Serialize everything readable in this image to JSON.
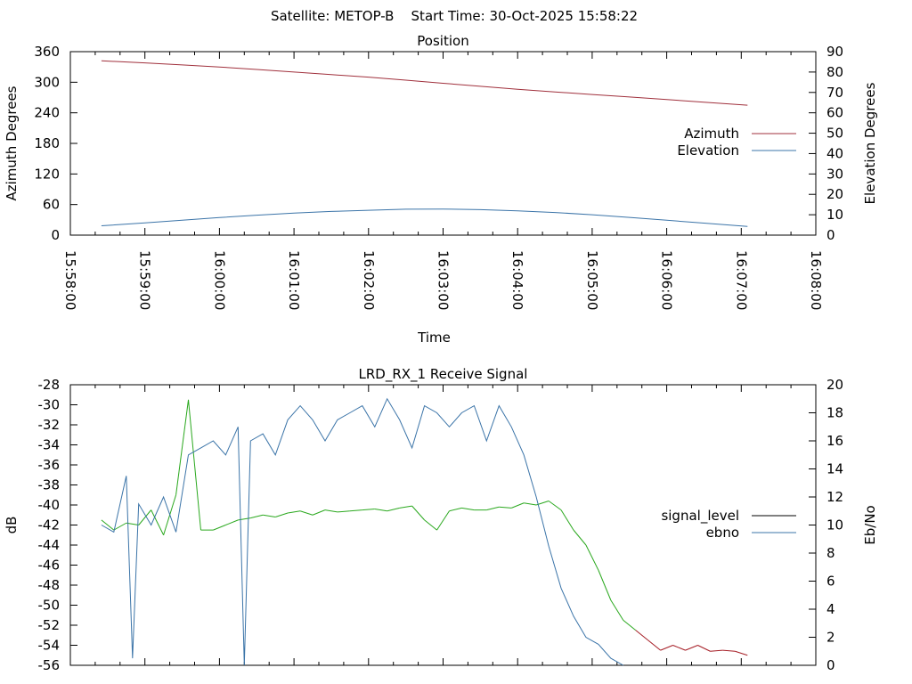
{
  "header": {
    "title": "Satellite: METOP-B    Start Time: 30-Oct-2025 15:58:22"
  },
  "colors": {
    "azimuth": "#a0303c",
    "elevation": "#3b74a8",
    "signal_level_legend": "#000000",
    "signal_level_strong": "#2aa81e",
    "signal_level_weak": "#a51c24",
    "ebno": "#3b74a8",
    "axis": "#000000"
  },
  "chart_data": [
    {
      "type": "line",
      "title": "Position",
      "xlabel": "Time",
      "ylabel": "Azimuth Degrees",
      "y2label": "Elevation Degrees",
      "xlim": [
        "15:58:00",
        "16:08:00"
      ],
      "xticks": [
        "15:58:00",
        "15:59:00",
        "16:00:00",
        "16:01:00",
        "16:02:00",
        "16:03:00",
        "16:04:00",
        "16:05:00",
        "16:06:00",
        "16:07:00",
        "16:08:00"
      ],
      "ylim": [
        0,
        360
      ],
      "yticks": [
        0,
        60,
        120,
        180,
        240,
        300,
        360
      ],
      "y2lim": [
        0,
        90
      ],
      "y2ticks": [
        0,
        10,
        20,
        30,
        40,
        50,
        60,
        70,
        80,
        90
      ],
      "legend_position": "right",
      "series": [
        {
          "name": "Azimuth",
          "axis": "left",
          "color_key": "azimuth",
          "x": [
            "15:58:25",
            "15:59:00",
            "15:59:30",
            "16:00:00",
            "16:00:30",
            "16:01:00",
            "16:01:30",
            "16:02:00",
            "16:02:30",
            "16:03:00",
            "16:03:30",
            "16:04:00",
            "16:04:30",
            "16:05:00",
            "16:05:30",
            "16:06:00",
            "16:06:30",
            "16:07:05"
          ],
          "values": [
            342,
            338,
            334,
            330,
            325,
            320,
            315,
            310,
            304,
            298,
            292,
            286,
            281,
            276,
            271,
            266,
            261,
            255
          ]
        },
        {
          "name": "Elevation",
          "axis": "right",
          "color_key": "elevation",
          "x": [
            "15:58:25",
            "15:59:00",
            "15:59:30",
            "16:00:00",
            "16:00:30",
            "16:01:00",
            "16:01:30",
            "16:02:00",
            "16:02:30",
            "16:03:00",
            "16:03:30",
            "16:04:00",
            "16:04:30",
            "16:05:00",
            "16:05:30",
            "16:06:00",
            "16:06:30",
            "16:07:05"
          ],
          "values": [
            4.6,
            6.0,
            7.3,
            8.6,
            9.8,
            10.8,
            11.6,
            12.2,
            12.7,
            12.8,
            12.5,
            11.9,
            11.1,
            10.0,
            8.7,
            7.3,
            5.9,
            4.3
          ]
        }
      ]
    },
    {
      "type": "line",
      "title": "LRD_RX_1 Receive Signal",
      "ylabel": "dB",
      "y2label": "Eb/No",
      "xlim": [
        "15:58:00",
        "16:08:00"
      ],
      "ylim": [
        -56,
        -28
      ],
      "yticks": [
        -28,
        -30,
        -32,
        -34,
        -36,
        -38,
        -40,
        -42,
        -44,
        -46,
        -48,
        -50,
        -52,
        -54,
        -56
      ],
      "y2lim": [
        0,
        20
      ],
      "y2ticks": [
        0,
        2,
        4,
        6,
        8,
        10,
        12,
        14,
        16,
        18,
        20
      ],
      "legend_position": "right",
      "series": [
        {
          "name": "signal_level",
          "axis": "left",
          "color_key": "signal_level_legend",
          "x": [
            "15:58:25",
            "15:58:35",
            "15:58:45",
            "15:58:55",
            "15:59:05",
            "15:59:15",
            "15:59:25",
            "15:59:35",
            "15:59:45",
            "15:59:55",
            "16:00:05",
            "16:00:15",
            "16:00:25",
            "16:00:35",
            "16:00:45",
            "16:00:55",
            "16:01:05",
            "16:01:15",
            "16:01:25",
            "16:01:35",
            "16:01:45",
            "16:01:55",
            "16:02:05",
            "16:02:15",
            "16:02:25",
            "16:02:35",
            "16:02:45",
            "16:02:55",
            "16:03:05",
            "16:03:15",
            "16:03:25",
            "16:03:35",
            "16:03:45",
            "16:03:55",
            "16:04:05",
            "16:04:15",
            "16:04:25",
            "16:04:35",
            "16:04:45",
            "16:04:55",
            "16:05:05",
            "16:05:15",
            "16:05:25",
            "16:05:35",
            "16:05:45",
            "16:05:55",
            "16:06:05",
            "16:06:15",
            "16:06:25",
            "16:06:35",
            "16:06:45",
            "16:06:55",
            "16:07:05"
          ],
          "values": [
            -41.5,
            -42.5,
            -41.8,
            -42.0,
            -40.5,
            -43.0,
            -39.0,
            -29.5,
            -42.5,
            -42.5,
            -42.0,
            -41.5,
            -41.3,
            -41.0,
            -41.2,
            -40.8,
            -40.6,
            -41.0,
            -40.5,
            -40.7,
            -40.6,
            -40.5,
            -40.4,
            -40.6,
            -40.3,
            -40.1,
            -41.5,
            -42.5,
            -40.6,
            -40.3,
            -40.5,
            -40.5,
            -40.2,
            -40.3,
            -39.8,
            -40.0,
            -39.6,
            -40.5,
            -42.5,
            -44.0,
            -46.5,
            -49.5,
            -51.5,
            -52.5,
            -53.5,
            -54.5,
            -54.0,
            -54.5,
            -54.0,
            -54.6,
            -54.5,
            -54.6,
            -55.0
          ]
        },
        {
          "name": "ebno",
          "axis": "right",
          "color_key": "ebno",
          "x": [
            "15:58:25",
            "15:58:35",
            "15:58:45",
            "15:58:50",
            "15:58:55",
            "15:59:05",
            "15:59:15",
            "15:59:25",
            "15:59:35",
            "15:59:45",
            "15:59:55",
            "16:00:05",
            "16:00:15",
            "16:00:20",
            "16:00:25",
            "16:00:35",
            "16:00:45",
            "16:00:55",
            "16:01:05",
            "16:01:15",
            "16:01:25",
            "16:01:35",
            "16:01:45",
            "16:01:55",
            "16:02:05",
            "16:02:15",
            "16:02:25",
            "16:02:35",
            "16:02:45",
            "16:02:55",
            "16:03:05",
            "16:03:15",
            "16:03:25",
            "16:03:35",
            "16:03:45",
            "16:03:55",
            "16:04:05",
            "16:04:15",
            "16:04:25",
            "16:04:35",
            "16:04:45",
            "16:04:55",
            "16:05:05",
            "16:05:15",
            "16:05:25"
          ],
          "values": [
            10.0,
            9.5,
            13.5,
            0.5,
            11.5,
            10.0,
            12.0,
            9.5,
            15.0,
            15.5,
            16.0,
            15.0,
            17.0,
            0.0,
            16.0,
            16.5,
            15.0,
            17.5,
            18.5,
            17.5,
            16.0,
            17.5,
            18.0,
            18.5,
            17.0,
            19.0,
            17.5,
            15.5,
            18.5,
            18.0,
            17.0,
            18.0,
            18.5,
            16.0,
            18.5,
            17.0,
            15.0,
            12.0,
            8.5,
            5.5,
            3.5,
            2.0,
            1.5,
            0.5,
            0.0
          ]
        }
      ]
    }
  ]
}
